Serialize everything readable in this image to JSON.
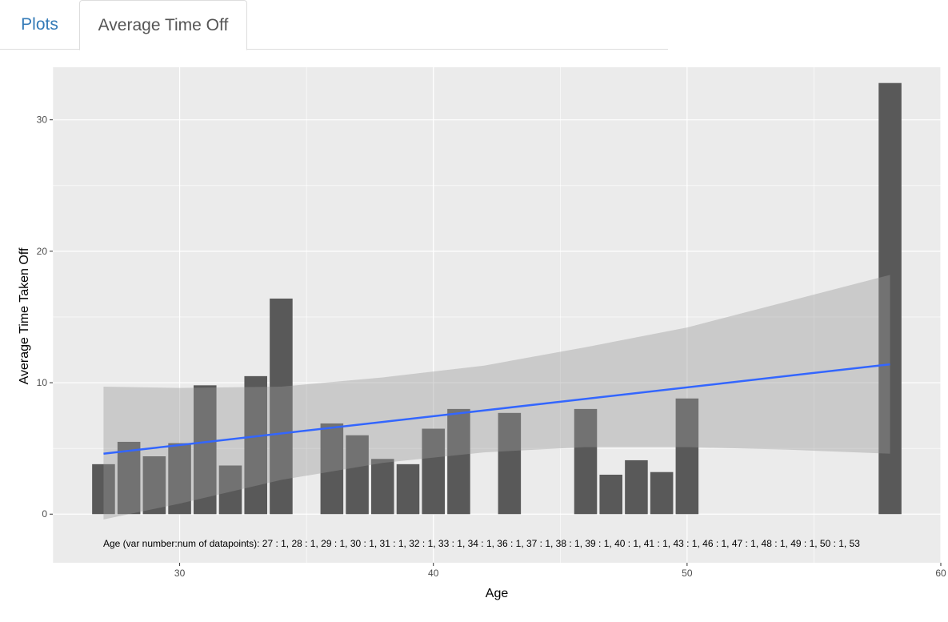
{
  "tabs": [
    {
      "label": "Plots",
      "active": false
    },
    {
      "label": "Average Time Off",
      "active": true
    }
  ],
  "chart_data": {
    "type": "bar",
    "xlabel": "Age",
    "ylabel": "Average Time Taken Off",
    "xlim": [
      25,
      60
    ],
    "ylim": [
      -3.7,
      34
    ],
    "x_ticks": [
      30,
      40,
      50,
      60
    ],
    "y_ticks": [
      0,
      10,
      20,
      30
    ],
    "grid": true,
    "bars": [
      {
        "x": 27,
        "y": 3.8
      },
      {
        "x": 28,
        "y": 5.5
      },
      {
        "x": 29,
        "y": 4.4
      },
      {
        "x": 30,
        "y": 5.4
      },
      {
        "x": 31,
        "y": 9.8
      },
      {
        "x": 32,
        "y": 3.7
      },
      {
        "x": 33,
        "y": 10.5
      },
      {
        "x": 34,
        "y": 16.4
      },
      {
        "x": 36,
        "y": 6.9
      },
      {
        "x": 37,
        "y": 6.0
      },
      {
        "x": 38,
        "y": 4.2
      },
      {
        "x": 39,
        "y": 3.8
      },
      {
        "x": 40,
        "y": 6.5
      },
      {
        "x": 41,
        "y": 8.0
      },
      {
        "x": 43,
        "y": 7.7
      },
      {
        "x": 46,
        "y": 8.0
      },
      {
        "x": 47,
        "y": 3.0
      },
      {
        "x": 48,
        "y": 4.1
      },
      {
        "x": 49,
        "y": 3.2
      },
      {
        "x": 50,
        "y": 8.8
      },
      {
        "x": 58,
        "y": 32.8
      }
    ],
    "trend": {
      "color": "#3366ff",
      "x": [
        27,
        58
      ],
      "y": [
        4.6,
        11.4
      ],
      "band": {
        "x": [
          27,
          30,
          34,
          38,
          42,
          46,
          50,
          54,
          58
        ],
        "lower": [
          -0.4,
          0.8,
          2.6,
          3.9,
          4.7,
          5.1,
          5.1,
          4.9,
          4.6
        ],
        "upper": [
          9.7,
          9.6,
          9.7,
          10.4,
          11.3,
          12.7,
          14.2,
          16.2,
          18.2
        ]
      }
    },
    "annotation": "Age (var number:num of datapoints): 27 : 1, 28 : 1, 29 : 1, 30 : 1, 31 : 1, 32 : 1, 33 : 1, 34 : 1, 36 : 1, 37 : 1, 38 : 1, 39 : 1, 40 : 1, 41 : 1, 43 : 1, 46 : 1, 47 : 1, 48 : 1, 49 : 1, 50 : 1, 53"
  }
}
